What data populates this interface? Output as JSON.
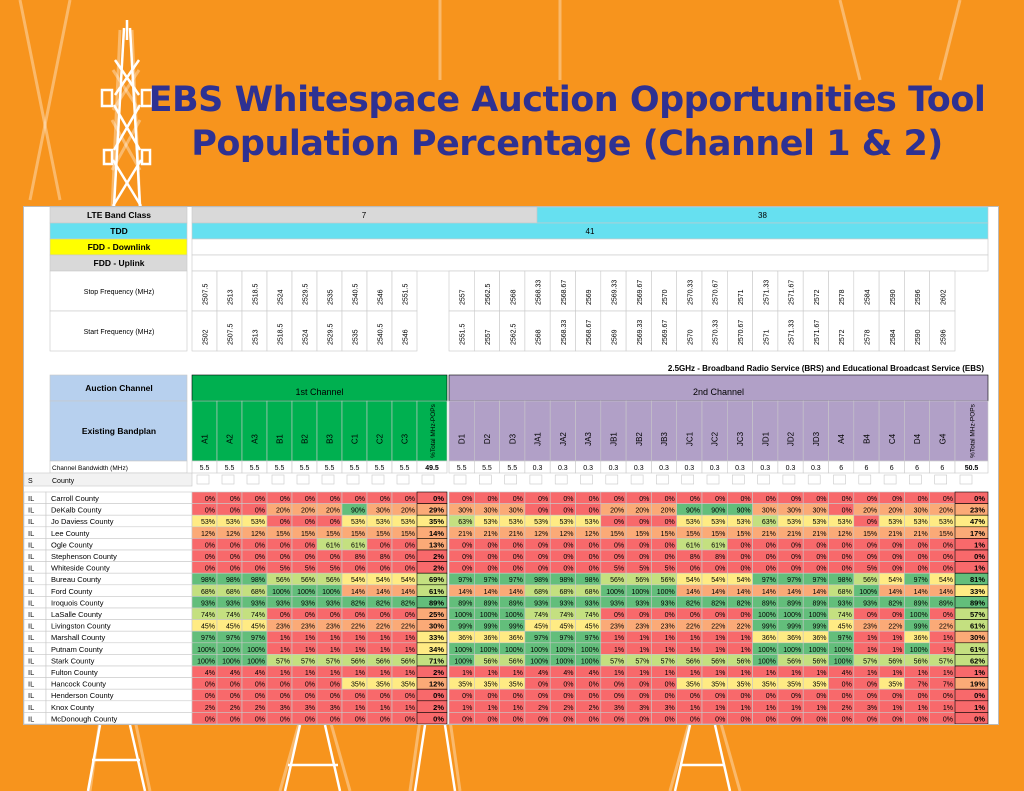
{
  "title": {
    "line1": "EBS Whitespace Auction Opportunities Tool",
    "line2": "Population Percentage (Channel 1 & 2)"
  },
  "header_labels": {
    "lte_band_class": "LTE Band Class",
    "tdd": "TDD",
    "fdd_downlink": "FDD - Downlink",
    "fdd_uplink": "FDD - Uplink",
    "stop_frequency": "Stop Frequency (MHz)",
    "start_frequency": "Start Frequency (MHz)",
    "auction_channel": "Auction Channel",
    "existing_bandplan": "Existing Bandplan",
    "channel_bandwidth": "Channel Bandwidth (MHz)",
    "band_class_7": "7",
    "band_class_38": "38",
    "tdd_41": "41",
    "service_title": "2.5GHz  -  Broadband Radio Service (BRS) and Educational Broadcast Service (EBS)",
    "ch1_label": "1st Channel",
    "ch2_label": "2nd Channel",
    "total_label": "%Total MHz-POPs",
    "filter_state": "S",
    "filter_county": "County"
  },
  "colors": {
    "red": "#f8696b",
    "orange": "#fbaa77",
    "yellow": "#ffeb84",
    "lightgreen": "#c4e080",
    "green": "#63be7b",
    "ch1_header": "#00b050",
    "ch2_header": "#b1a0c7",
    "bandplan_bg": "#b7d0ee",
    "cyan": "#66e0f0",
    "yellow_label": "#ffff00",
    "grey_band": "#d9d9d9"
  },
  "ch1": {
    "channels": [
      "A1",
      "A2",
      "A3",
      "B1",
      "B2",
      "B3",
      "C1",
      "C2",
      "C3"
    ],
    "stop": [
      "2507.5",
      "2513",
      "2518.5",
      "2524",
      "2529.5",
      "2535",
      "2540.5",
      "2546",
      "2551.5"
    ],
    "start": [
      "2502",
      "2507.5",
      "2513",
      "2518.5",
      "2524",
      "2529.5",
      "2535",
      "2540.5",
      "2546"
    ],
    "bandwidth": [
      "5.5",
      "5.5",
      "5.5",
      "5.5",
      "5.5",
      "5.5",
      "5.5",
      "5.5",
      "5.5"
    ],
    "total_bw": "49.5"
  },
  "ch2": {
    "channels": [
      "D1",
      "D2",
      "D3",
      "JA1",
      "JA2",
      "JA3",
      "JB1",
      "JB2",
      "JB3",
      "JC1",
      "JC2",
      "JC3",
      "JD1",
      "JD2",
      "JD3",
      "A4",
      "B4",
      "C4",
      "D4",
      "G4"
    ],
    "stop": [
      "2557",
      "2562.5",
      "2568",
      "2568.33",
      "2568.67",
      "2569",
      "2569.33",
      "2569.67",
      "2570",
      "2570.33",
      "2570.67",
      "2571",
      "2571.33",
      "2571.67",
      "2572",
      "2578",
      "2584",
      "2590",
      "2596",
      "2602"
    ],
    "start": [
      "2551.5",
      "2557",
      "2562.5",
      "2568",
      "2568.33",
      "2568.67",
      "2569",
      "2569.33",
      "2569.67",
      "2570",
      "2570.33",
      "2570.67",
      "2571",
      "2571.33",
      "2571.67",
      "2572",
      "2578",
      "2584",
      "2590",
      "2596"
    ],
    "bandwidth": [
      "5.5",
      "5.5",
      "5.5",
      "0.3",
      "0.3",
      "0.3",
      "0.3",
      "0.3",
      "0.3",
      "0.3",
      "0.3",
      "0.3",
      "0.3",
      "0.3",
      "0.3",
      "6",
      "6",
      "6",
      "6",
      "6"
    ],
    "total_bw": "50.5"
  },
  "rows": [
    {
      "state": "IL",
      "county": "Carroll County",
      "ch1": [
        "0%",
        "0%",
        "0%",
        "0%",
        "0%",
        "0%",
        "0%",
        "0%",
        "0%"
      ],
      "t1": "0%",
      "ch2": [
        "0%",
        "0%",
        "0%",
        "0%",
        "0%",
        "0%",
        "0%",
        "0%",
        "0%",
        "0%",
        "0%",
        "0%",
        "0%",
        "0%",
        "0%",
        "0%",
        "0%",
        "0%",
        "0%",
        "0%"
      ],
      "t2": "0%"
    },
    {
      "state": "IL",
      "county": "DeKalb County",
      "ch1": [
        "0%",
        "0%",
        "0%",
        "20%",
        "20%",
        "20%",
        "90%",
        "30%",
        "20%"
      ],
      "t1": "29%",
      "ch2": [
        "30%",
        "30%",
        "30%",
        "0%",
        "0%",
        "0%",
        "20%",
        "20%",
        "20%",
        "90%",
        "90%",
        "90%",
        "30%",
        "30%",
        "30%",
        "0%",
        "20%",
        "20%",
        "30%",
        "20%"
      ],
      "t2": "23%"
    },
    {
      "state": "IL",
      "county": "Jo Daviess County",
      "ch1": [
        "53%",
        "53%",
        "53%",
        "0%",
        "0%",
        "0%",
        "53%",
        "53%",
        "53%"
      ],
      "t1": "35%",
      "ch2": [
        "63%",
        "53%",
        "53%",
        "53%",
        "53%",
        "53%",
        "0%",
        "0%",
        "0%",
        "53%",
        "53%",
        "53%",
        "63%",
        "53%",
        "53%",
        "53%",
        "0%",
        "53%",
        "53%",
        "53%"
      ],
      "t2": "47%"
    },
    {
      "state": "IL",
      "county": "Lee County",
      "ch1": [
        "12%",
        "12%",
        "12%",
        "15%",
        "15%",
        "15%",
        "15%",
        "15%",
        "15%"
      ],
      "t1": "14%",
      "ch2": [
        "21%",
        "21%",
        "21%",
        "12%",
        "12%",
        "12%",
        "15%",
        "15%",
        "15%",
        "15%",
        "15%",
        "15%",
        "21%",
        "21%",
        "21%",
        "12%",
        "15%",
        "21%",
        "21%",
        "15%"
      ],
      "t2": "17%"
    },
    {
      "state": "IL",
      "county": "Ogle County",
      "ch1": [
        "0%",
        "0%",
        "0%",
        "0%",
        "0%",
        "61%",
        "61%",
        "0%",
        "0%"
      ],
      "t1": "13%",
      "ch2": [
        "0%",
        "0%",
        "0%",
        "0%",
        "0%",
        "0%",
        "0%",
        "0%",
        "0%",
        "61%",
        "61%",
        "0%",
        "0%",
        "0%",
        "0%",
        "0%",
        "0%",
        "0%",
        "0%",
        "0%"
      ],
      "t2": "1%"
    },
    {
      "state": "IL",
      "county": "Stephenson County",
      "ch1": [
        "0%",
        "0%",
        "0%",
        "0%",
        "0%",
        "0%",
        "8%",
        "8%",
        "0%"
      ],
      "t1": "2%",
      "ch2": [
        "0%",
        "0%",
        "0%",
        "0%",
        "0%",
        "0%",
        "0%",
        "0%",
        "0%",
        "8%",
        "8%",
        "0%",
        "0%",
        "0%",
        "0%",
        "0%",
        "0%",
        "0%",
        "0%",
        "0%"
      ],
      "t2": "0%"
    },
    {
      "state": "IL",
      "county": "Whiteside County",
      "ch1": [
        "0%",
        "0%",
        "0%",
        "5%",
        "5%",
        "5%",
        "0%",
        "0%",
        "0%"
      ],
      "t1": "2%",
      "ch2": [
        "0%",
        "0%",
        "0%",
        "0%",
        "0%",
        "0%",
        "5%",
        "5%",
        "5%",
        "0%",
        "0%",
        "0%",
        "0%",
        "0%",
        "0%",
        "0%",
        "5%",
        "0%",
        "0%",
        "0%"
      ],
      "t2": "1%"
    },
    {
      "state": "IL",
      "county": "Bureau County",
      "ch1": [
        "98%",
        "98%",
        "98%",
        "56%",
        "56%",
        "56%",
        "54%",
        "54%",
        "54%"
      ],
      "t1": "69%",
      "ch2": [
        "97%",
        "97%",
        "97%",
        "98%",
        "98%",
        "98%",
        "56%",
        "56%",
        "56%",
        "54%",
        "54%",
        "54%",
        "97%",
        "97%",
        "97%",
        "98%",
        "56%",
        "54%",
        "97%",
        "54%"
      ],
      "t2": "81%"
    },
    {
      "state": "IL",
      "county": "Ford County",
      "ch1": [
        "68%",
        "68%",
        "68%",
        "100%",
        "100%",
        "100%",
        "14%",
        "14%",
        "14%"
      ],
      "t1": "61%",
      "ch2": [
        "14%",
        "14%",
        "14%",
        "68%",
        "68%",
        "68%",
        "100%",
        "100%",
        "100%",
        "14%",
        "14%",
        "14%",
        "14%",
        "14%",
        "14%",
        "68%",
        "100%",
        "14%",
        "14%",
        "14%"
      ],
      "t2": "33%"
    },
    {
      "state": "IL",
      "county": "Iroquois County",
      "ch1": [
        "93%",
        "93%",
        "93%",
        "93%",
        "93%",
        "93%",
        "82%",
        "82%",
        "82%"
      ],
      "t1": "89%",
      "ch2": [
        "89%",
        "89%",
        "89%",
        "93%",
        "93%",
        "93%",
        "93%",
        "93%",
        "93%",
        "82%",
        "82%",
        "82%",
        "89%",
        "89%",
        "89%",
        "93%",
        "93%",
        "82%",
        "89%",
        "89%"
      ],
      "t2": "89%"
    },
    {
      "state": "IL",
      "county": "LaSalle County",
      "ch1": [
        "74%",
        "74%",
        "74%",
        "0%",
        "0%",
        "0%",
        "0%",
        "0%",
        "0%"
      ],
      "t1": "25%",
      "ch2": [
        "100%",
        "100%",
        "100%",
        "74%",
        "74%",
        "74%",
        "0%",
        "0%",
        "0%",
        "0%",
        "0%",
        "0%",
        "100%",
        "100%",
        "100%",
        "74%",
        "0%",
        "0%",
        "100%",
        "0%"
      ],
      "t2": "57%"
    },
    {
      "state": "IL",
      "county": "Livingston County",
      "ch1": [
        "45%",
        "45%",
        "45%",
        "23%",
        "23%",
        "23%",
        "22%",
        "22%",
        "22%"
      ],
      "t1": "30%",
      "ch2": [
        "99%",
        "99%",
        "99%",
        "45%",
        "45%",
        "45%",
        "23%",
        "23%",
        "23%",
        "22%",
        "22%",
        "22%",
        "99%",
        "99%",
        "99%",
        "45%",
        "23%",
        "22%",
        "99%",
        "22%"
      ],
      "t2": "61%"
    },
    {
      "state": "IL",
      "county": "Marshall County",
      "ch1": [
        "97%",
        "97%",
        "97%",
        "1%",
        "1%",
        "1%",
        "1%",
        "1%",
        "1%"
      ],
      "t1": "33%",
      "ch2": [
        "36%",
        "36%",
        "36%",
        "97%",
        "97%",
        "97%",
        "1%",
        "1%",
        "1%",
        "1%",
        "1%",
        "1%",
        "36%",
        "36%",
        "36%",
        "97%",
        "1%",
        "1%",
        "36%",
        "1%"
      ],
      "t2": "30%"
    },
    {
      "state": "IL",
      "county": "Putnam County",
      "ch1": [
        "100%",
        "100%",
        "100%",
        "1%",
        "1%",
        "1%",
        "1%",
        "1%",
        "1%"
      ],
      "t1": "34%",
      "ch2": [
        "100%",
        "100%",
        "100%",
        "100%",
        "100%",
        "100%",
        "1%",
        "1%",
        "1%",
        "1%",
        "1%",
        "1%",
        "100%",
        "100%",
        "100%",
        "100%",
        "1%",
        "1%",
        "100%",
        "1%"
      ],
      "t2": "61%"
    },
    {
      "state": "IL",
      "county": "Stark County",
      "ch1": [
        "100%",
        "100%",
        "100%",
        "57%",
        "57%",
        "57%",
        "56%",
        "56%",
        "56%"
      ],
      "t1": "71%",
      "ch2": [
        "100%",
        "56%",
        "56%",
        "100%",
        "100%",
        "100%",
        "57%",
        "57%",
        "57%",
        "56%",
        "56%",
        "56%",
        "100%",
        "56%",
        "56%",
        "100%",
        "57%",
        "56%",
        "56%",
        "57%"
      ],
      "t2": "62%"
    },
    {
      "state": "IL",
      "county": "Fulton County",
      "ch1": [
        "4%",
        "4%",
        "4%",
        "1%",
        "1%",
        "1%",
        "1%",
        "1%",
        "1%"
      ],
      "t1": "2%",
      "ch2": [
        "1%",
        "1%",
        "1%",
        "4%",
        "4%",
        "4%",
        "1%",
        "1%",
        "1%",
        "1%",
        "1%",
        "1%",
        "1%",
        "1%",
        "1%",
        "4%",
        "1%",
        "1%",
        "1%",
        "1%"
      ],
      "t2": "1%"
    },
    {
      "state": "IL",
      "county": "Hancock County",
      "ch1": [
        "0%",
        "0%",
        "0%",
        "0%",
        "0%",
        "0%",
        "35%",
        "35%",
        "35%"
      ],
      "t1": "12%",
      "ch2": [
        "35%",
        "35%",
        "35%",
        "0%",
        "0%",
        "0%",
        "0%",
        "0%",
        "0%",
        "35%",
        "35%",
        "35%",
        "35%",
        "35%",
        "35%",
        "0%",
        "0%",
        "35%",
        "7%",
        "7%"
      ],
      "t2": "19%"
    },
    {
      "state": "IL",
      "county": "Henderson County",
      "ch1": [
        "0%",
        "0%",
        "0%",
        "0%",
        "0%",
        "0%",
        "0%",
        "0%",
        "0%"
      ],
      "t1": "0%",
      "ch2": [
        "0%",
        "0%",
        "0%",
        "0%",
        "0%",
        "0%",
        "0%",
        "0%",
        "0%",
        "0%",
        "0%",
        "0%",
        "0%",
        "0%",
        "0%",
        "0%",
        "0%",
        "0%",
        "0%",
        "0%"
      ],
      "t2": "0%"
    },
    {
      "state": "IL",
      "county": "Knox County",
      "ch1": [
        "2%",
        "2%",
        "2%",
        "3%",
        "3%",
        "3%",
        "1%",
        "1%",
        "1%"
      ],
      "t1": "2%",
      "ch2": [
        "1%",
        "1%",
        "1%",
        "2%",
        "2%",
        "2%",
        "3%",
        "3%",
        "3%",
        "1%",
        "1%",
        "1%",
        "1%",
        "1%",
        "1%",
        "2%",
        "3%",
        "1%",
        "1%",
        "1%"
      ],
      "t2": "1%"
    },
    {
      "state": "IL",
      "county": "McDonough County",
      "ch1": [
        "0%",
        "0%",
        "0%",
        "0%",
        "0%",
        "0%",
        "0%",
        "0%",
        "0%"
      ],
      "t1": "0%",
      "ch2": [
        "0%",
        "0%",
        "0%",
        "0%",
        "0%",
        "0%",
        "0%",
        "0%",
        "0%",
        "0%",
        "0%",
        "0%",
        "0%",
        "0%",
        "0%",
        "0%",
        "0%",
        "0%",
        "0%",
        "0%"
      ],
      "t2": "0%"
    }
  ]
}
